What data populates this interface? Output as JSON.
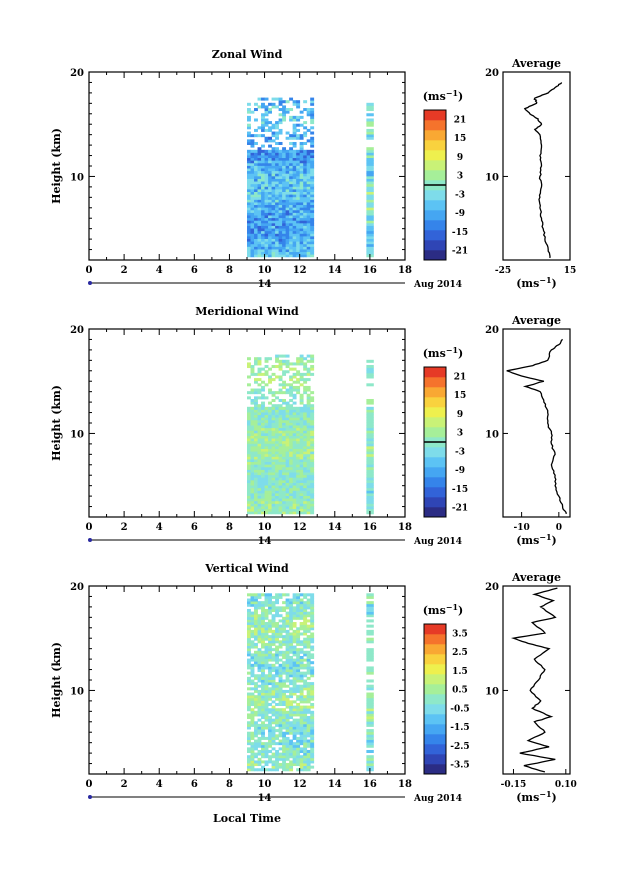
{
  "figure": {
    "xlabel": "Local Time",
    "date_label": "14",
    "month_label": "Aug 2014",
    "average_title": "Average",
    "unit_label": "(ms",
    "unit_sup": "−1",
    "unit_close": ")"
  },
  "colormap": [
    "#2b2c84",
    "#2f45b5",
    "#3263d8",
    "#3584ea",
    "#45a6f2",
    "#5cc3f4",
    "#7edcea",
    "#8ee8c9",
    "#a6ef99",
    "#c9f277",
    "#eef04e",
    "#f9d23e",
    "#f9a833",
    "#f5732c",
    "#e63a26"
  ],
  "chart_data": [
    {
      "type": "heatmap",
      "title": "Zonal Wind",
      "ylabel": "Height (km)",
      "xlim": [
        0,
        18
      ],
      "ylim": [
        2,
        20
      ],
      "x_ticks": [
        "0",
        "2",
        "4",
        "6",
        "8",
        "10",
        "12",
        "14",
        "16",
        "18"
      ],
      "y_ticks": [
        "10",
        "20"
      ],
      "colorbar": {
        "unit": "(ms−1)",
        "range": [
          -24,
          24
        ],
        "ticks": [
          "21",
          "15",
          "9",
          "3",
          "-3",
          "-9",
          "-15",
          "-21"
        ],
        "contour_level": 0
      },
      "data_blocks": [
        {
          "x": [
            9,
            12.7
          ],
          "y": [
            2.3,
            17.5
          ],
          "typical": -8,
          "spread": 6,
          "sparse_above": 12.5
        },
        {
          "x": [
            15.8,
            16.2
          ],
          "y": [
            2.3,
            17.5
          ],
          "typical": -2,
          "spread": 6,
          "sparse_above": 12.5
        }
      ],
      "average_profile": {
        "xlim": [
          -25,
          15
        ],
        "x_ticks": [
          "-25",
          "15"
        ],
        "ylim": [
          2,
          20
        ],
        "y_ticks": [
          "10",
          "20"
        ],
        "points": [
          [
            3,
            2.2
          ],
          [
            2,
            3
          ],
          [
            0,
            4
          ],
          [
            -1,
            5
          ],
          [
            -2,
            6
          ],
          [
            -3,
            7
          ],
          [
            -3,
            8
          ],
          [
            -2,
            9
          ],
          [
            -3,
            10
          ],
          [
            -2,
            11
          ],
          [
            -3,
            12
          ],
          [
            -2,
            13
          ],
          [
            -3,
            14
          ],
          [
            -6,
            14.5
          ],
          [
            -2,
            15
          ],
          [
            -4,
            15.5
          ],
          [
            -9,
            16
          ],
          [
            -12,
            16.5
          ],
          [
            -5,
            17
          ],
          [
            -6,
            17.5
          ],
          [
            2,
            18
          ],
          [
            6,
            18.5
          ],
          [
            10,
            19
          ]
        ]
      }
    },
    {
      "type": "heatmap",
      "title": "Meridional Wind",
      "ylabel": "Height (km)",
      "xlim": [
        0,
        18
      ],
      "ylim": [
        2,
        20
      ],
      "x_ticks": [
        "0",
        "2",
        "4",
        "6",
        "8",
        "10",
        "12",
        "14",
        "16",
        "18"
      ],
      "y_ticks": [
        "10",
        "20"
      ],
      "colorbar": {
        "unit": "(ms−1)",
        "range": [
          -24,
          24
        ],
        "ticks": [
          "21",
          "15",
          "9",
          "3",
          "-3",
          "-9",
          "-15",
          "-21"
        ],
        "contour_level": 0
      },
      "data_blocks": [
        {
          "x": [
            9,
            12.7
          ],
          "y": [
            2.3,
            17.5
          ],
          "typical": 1,
          "spread": 4,
          "sparse_above": 12.5
        },
        {
          "x": [
            15.8,
            16.2
          ],
          "y": [
            2.3,
            17.5
          ],
          "typical": 0,
          "spread": 4,
          "sparse_above": 12.5
        }
      ],
      "average_profile": {
        "xlim": [
          -15,
          3
        ],
        "x_ticks": [
          "-10",
          "0"
        ],
        "ylim": [
          2,
          20
        ],
        "y_ticks": [
          "10",
          "20"
        ],
        "points": [
          [
            2,
            2.3
          ],
          [
            1,
            3
          ],
          [
            0,
            4
          ],
          [
            -1,
            5
          ],
          [
            -1,
            6
          ],
          [
            -2,
            7
          ],
          [
            -1,
            8
          ],
          [
            -2,
            9
          ],
          [
            -2,
            10
          ],
          [
            -3,
            11
          ],
          [
            -3,
            12
          ],
          [
            -4,
            13
          ],
          [
            -5,
            14
          ],
          [
            -9,
            14.5
          ],
          [
            -4,
            15
          ],
          [
            -10,
            15.5
          ],
          [
            -14,
            16
          ],
          [
            -7,
            16.5
          ],
          [
            -3,
            17
          ],
          [
            -2,
            18
          ],
          [
            0,
            18.5
          ],
          [
            1,
            19
          ]
        ]
      }
    },
    {
      "type": "heatmap",
      "title": "Vertical Wind",
      "ylabel": "Height (km)",
      "xlim": [
        0,
        18
      ],
      "ylim": [
        2,
        20
      ],
      "x_ticks": [
        "0",
        "2",
        "4",
        "6",
        "8",
        "10",
        "12",
        "14",
        "16",
        "18"
      ],
      "y_ticks": [
        "10",
        "20"
      ],
      "colorbar": {
        "unit": "(ms−1)",
        "range": [
          -4,
          4
        ],
        "ticks": [
          "3.5",
          "2.5",
          "1.5",
          "0.5",
          "-0.5",
          "-1.5",
          "-2.5",
          "-3.5"
        ]
      },
      "data_blocks": [
        {
          "x": [
            9,
            12.7
          ],
          "y": [
            2.3,
            19.2
          ],
          "typical": 0,
          "spread": 0.8
        },
        {
          "x": [
            15.8,
            16.2
          ],
          "y": [
            2.3,
            19.2
          ],
          "typical": 0,
          "spread": 0.8
        }
      ],
      "average_profile": {
        "xlim": [
          -0.2,
          0.12
        ],
        "x_ticks": [
          "-0.15",
          "0.10"
        ],
        "ylim": [
          2,
          20
        ],
        "y_ticks": [
          "10",
          "20"
        ],
        "points": [
          [
            0.0,
            2.2
          ],
          [
            -0.1,
            2.8
          ],
          [
            0.05,
            3.4
          ],
          [
            -0.12,
            4
          ],
          [
            0.02,
            4.6
          ],
          [
            -0.08,
            5.2
          ],
          [
            0.0,
            6
          ],
          [
            -0.05,
            7
          ],
          [
            0.03,
            7.5
          ],
          [
            -0.06,
            8.3
          ],
          [
            -0.02,
            9
          ],
          [
            -0.07,
            10
          ],
          [
            -0.03,
            11
          ],
          [
            0.0,
            12
          ],
          [
            -0.05,
            13
          ],
          [
            0.02,
            14
          ],
          [
            -0.08,
            14.5
          ],
          [
            -0.15,
            15
          ],
          [
            0.0,
            15.5
          ],
          [
            -0.06,
            16.5
          ],
          [
            0.05,
            17
          ],
          [
            -0.02,
            18
          ],
          [
            0.04,
            18.6
          ],
          [
            -0.05,
            19.2
          ],
          [
            0.06,
            19.8
          ]
        ]
      }
    }
  ]
}
